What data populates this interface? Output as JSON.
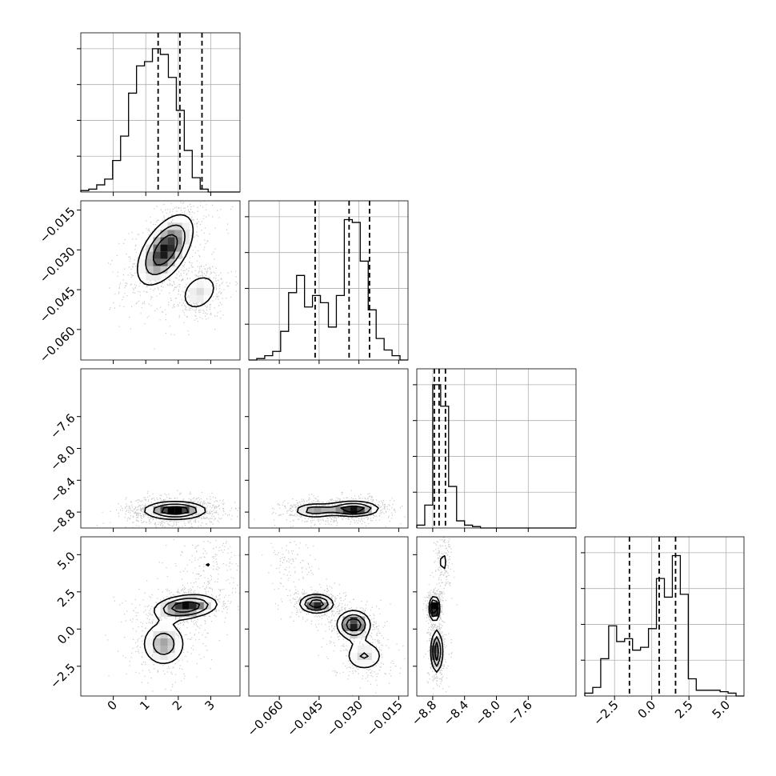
{
  "chart_data": {
    "type": "corner",
    "title": "",
    "parameters": [
      {
        "label": "",
        "range": [
          -1.0,
          3.9
        ],
        "ticks": [
          0,
          1,
          2,
          3
        ],
        "tick_labels": [
          "0",
          "1",
          "2",
          "3"
        ],
        "quantiles": [
          1.38,
          2.05,
          2.73
        ]
      },
      {
        "label": "",
        "range": [
          -0.0715,
          -0.0115
        ],
        "ticks": [
          -0.06,
          -0.045,
          -0.03,
          -0.015
        ],
        "tick_labels": [
          "−0.060",
          "−0.045",
          "−0.030",
          "−0.015"
        ],
        "quantiles": [
          -0.0465,
          -0.0337,
          -0.026
        ]
      },
      {
        "label": "",
        "range": [
          -9.0,
          -7.0
        ],
        "ticks": [
          -8.8,
          -8.4,
          -8.0,
          -7.6
        ],
        "tick_labels": [
          "−8.8",
          "−8.4",
          "−8.0",
          "−7.6"
        ],
        "quantiles": [
          -8.78,
          -8.72,
          -8.64
        ]
      },
      {
        "label": "",
        "range": [
          -4.5,
          6.2
        ],
        "ticks": [
          -2.5,
          0.0,
          2.5,
          5.0
        ],
        "tick_labels": [
          "−2.5",
          "0.0",
          "2.5",
          "5.0"
        ],
        "quantiles": [
          -1.5,
          0.5,
          1.6
        ]
      }
    ],
    "histograms": [
      {
        "parameter": 0,
        "bins": 20,
        "counts": [
          0.01,
          0.02,
          0.05,
          0.09,
          0.22,
          0.39,
          0.69,
          0.88,
          0.91,
          1.0,
          0.96,
          0.8,
          0.57,
          0.29,
          0.1,
          0.02,
          0.0,
          0.0,
          0.0,
          0.0
        ]
      },
      {
        "parameter": 1,
        "bins": 20,
        "counts": [
          0.0,
          0.01,
          0.03,
          0.06,
          0.2,
          0.47,
          0.59,
          0.37,
          0.45,
          0.4,
          0.23,
          0.45,
          0.98,
          0.96,
          0.69,
          0.35,
          0.15,
          0.07,
          0.03,
          0.0
        ]
      },
      {
        "parameter": 2,
        "bins": 20,
        "counts": [
          0.02,
          0.16,
          1.0,
          0.85,
          0.29,
          0.05,
          0.02,
          0.01,
          0.0,
          0.0,
          0.0,
          0.0,
          0.0,
          0.0,
          0.0,
          0.0,
          0.0,
          0.0,
          0.0,
          0.0
        ]
      },
      {
        "parameter": 3,
        "bins": 20,
        "counts": [
          0.02,
          0.06,
          0.26,
          0.49,
          0.38,
          0.4,
          0.32,
          0.34,
          0.47,
          0.82,
          0.69,
          0.98,
          0.71,
          0.12,
          0.04,
          0.04,
          0.04,
          0.03,
          0.02,
          0.0
        ]
      }
    ],
    "joint_modes": [
      {
        "x": 0,
        "y": 1,
        "modes": [
          {
            "cx": 1.6,
            "cy": -0.03,
            "sx": 0.55,
            "sy": 0.0085,
            "rho": 0.55,
            "w": 0.65
          },
          {
            "cx": 2.65,
            "cy": -0.046,
            "sx": 0.4,
            "sy": 0.005,
            "rho": 0.3,
            "w": 0.35
          }
        ]
      },
      {
        "x": 0,
        "y": 2,
        "modes": [
          {
            "cx": 1.9,
            "cy": -8.78,
            "sx": 0.6,
            "sy": 0.07,
            "rho": 0.0,
            "w": 1.0
          }
        ]
      },
      {
        "x": 0,
        "y": 3,
        "modes": [
          {
            "cx": 1.55,
            "cy": -1.0,
            "sx": 0.45,
            "sy": 1.0,
            "rho": 0.0,
            "w": 0.35
          },
          {
            "cx": 2.25,
            "cy": 1.5,
            "sx": 0.6,
            "sy": 0.5,
            "rho": 0.2,
            "w": 0.5
          },
          {
            "cx": 2.9,
            "cy": 4.3,
            "sx": 0.45,
            "sy": 0.9,
            "rho": 0.0,
            "w": 0.15
          }
        ]
      },
      {
        "x": 1,
        "y": 2,
        "modes": [
          {
            "cx": -0.047,
            "cy": -8.78,
            "sx": 0.005,
            "sy": 0.06,
            "rho": 0.0,
            "w": 0.4
          },
          {
            "cx": -0.032,
            "cy": -8.76,
            "sx": 0.006,
            "sy": 0.06,
            "rho": 0.0,
            "w": 0.6
          }
        ]
      },
      {
        "x": 1,
        "y": 3,
        "modes": [
          {
            "cx": -0.046,
            "cy": 1.7,
            "sx": 0.004,
            "sy": 0.4,
            "rho": 0.0,
            "w": 0.35
          },
          {
            "cx": -0.032,
            "cy": 0.3,
            "sx": 0.004,
            "sy": 0.6,
            "rho": 0.0,
            "w": 0.35
          },
          {
            "cx": -0.028,
            "cy": -1.8,
            "sx": 0.005,
            "sy": 0.7,
            "rho": 0.0,
            "w": 0.2
          },
          {
            "cx": -0.056,
            "cy": 4.2,
            "sx": 0.004,
            "sy": 0.9,
            "rho": 0.0,
            "w": 0.1
          }
        ]
      },
      {
        "x": 2,
        "y": 3,
        "modes": [
          {
            "cx": -8.78,
            "cy": 1.4,
            "sx": 0.04,
            "sy": 0.5,
            "rho": 0.0,
            "w": 0.45
          },
          {
            "cx": -8.75,
            "cy": -1.5,
            "sx": 0.045,
            "sy": 0.9,
            "rho": 0.0,
            "w": 0.4
          },
          {
            "cx": -8.67,
            "cy": 4.5,
            "sx": 0.05,
            "sy": 0.8,
            "rho": 0.0,
            "w": 0.15
          }
        ]
      }
    ],
    "colors": {
      "scatter": "#000000",
      "contour": "#000000",
      "grid": "#b0b0b0",
      "density": "#000000",
      "quantile_line": "#000000"
    },
    "grid": true,
    "quantile_line_style": "dashed"
  }
}
